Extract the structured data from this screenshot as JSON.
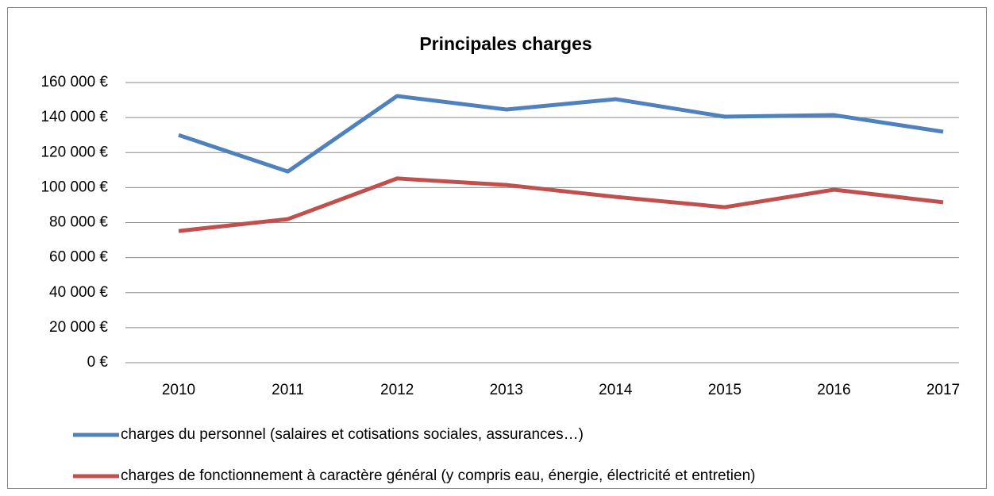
{
  "chart_data": {
    "type": "line",
    "title": "Principales charges",
    "categories": [
      "2010",
      "2011",
      "2012",
      "2013",
      "2014",
      "2015",
      "2016",
      "2017"
    ],
    "series": [
      {
        "name": "charges du personnel (salaires et cotisations sociales, assurances…)",
        "color": "#4f81bd",
        "values": [
          130000,
          109200,
          152300,
          144600,
          150500,
          140500,
          141400,
          131900
        ]
      },
      {
        "name": "charges de fonctionnement à caractère général (y compris eau, énergie, électricité et entretien)",
        "color": "#c0504d",
        "values": [
          75200,
          82000,
          105200,
          101500,
          94700,
          88800,
          98800,
          91600
        ]
      }
    ],
    "ylim": [
      0,
      160000
    ],
    "yticks": [
      {
        "value": 0,
        "label": "0 €"
      },
      {
        "value": 20000,
        "label": "20 000 €"
      },
      {
        "value": 40000,
        "label": "40 000 €"
      },
      {
        "value": 60000,
        "label": "60 000 €"
      },
      {
        "value": 80000,
        "label": "80 000 €"
      },
      {
        "value": 100000,
        "label": "100 000 €"
      },
      {
        "value": 120000,
        "label": "120 000 €"
      },
      {
        "value": 140000,
        "label": "140 000 €"
      },
      {
        "value": 160000,
        "label": "160 000 €"
      }
    ],
    "grid": true,
    "legend": "bottom"
  }
}
